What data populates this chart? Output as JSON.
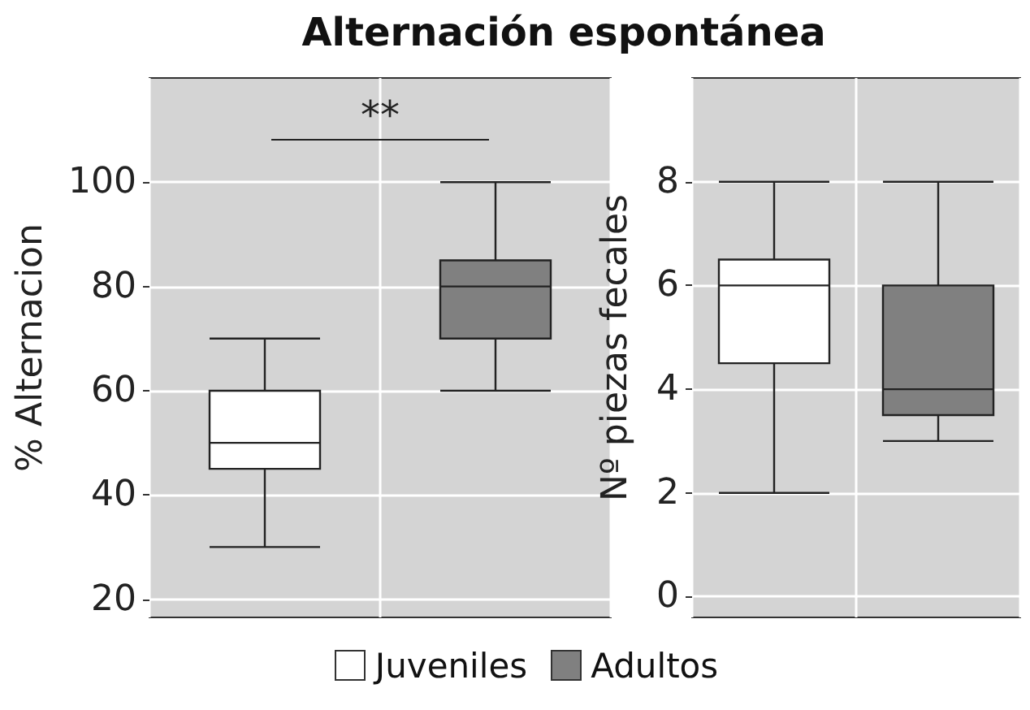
{
  "chart_data": [
    {
      "type": "box",
      "title": "Alternación espontánea",
      "ylabel": "% Alternacion",
      "categories": [
        null,
        null
      ],
      "series": [
        {
          "name": "Juveniles",
          "color": "#ffffff",
          "boxes": [
            {
              "low": 30,
              "q1": 45,
              "median": 50,
              "q3": 60,
              "high": 70
            },
            null
          ]
        },
        {
          "name": "Adultos",
          "color": "#808080",
          "boxes": [
            null,
            {
              "low": 60,
              "q1": 70,
              "median": 80,
              "q3": 85,
              "high": 100
            }
          ]
        }
      ],
      "ylim": [
        16.5,
        120
      ],
      "yticks": [
        20,
        40,
        60,
        80,
        100
      ],
      "grid": true,
      "legend": "bottom",
      "annotations": [
        "**"
      ]
    },
    {
      "type": "box",
      "ylabel": "Nº piezas fecales",
      "categories": [
        null,
        null
      ],
      "series": [
        {
          "name": "Juveniles",
          "color": "#ffffff",
          "boxes": [
            {
              "low": 2,
              "q1": 4.5,
              "median": 6,
              "q3": 6.5,
              "high": 8
            },
            null
          ]
        },
        {
          "name": "Adultos",
          "color": "#808080",
          "boxes": [
            null,
            {
              "low": 3,
              "q1": 3.5,
              "median": 4,
              "q3": 6,
              "high": 8
            }
          ]
        }
      ],
      "ylim": [
        -0.4,
        10
      ],
      "yticks": [
        0,
        2,
        4,
        6,
        8
      ],
      "grid": true,
      "legend": "bottom"
    }
  ]
}
